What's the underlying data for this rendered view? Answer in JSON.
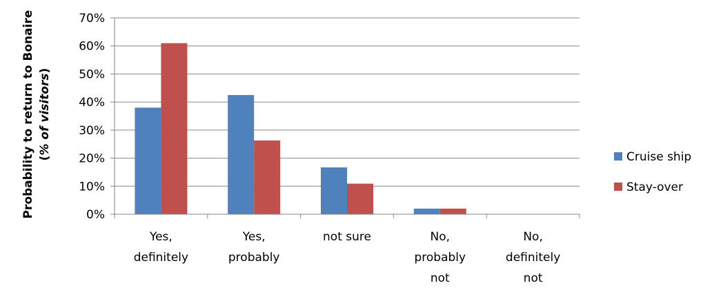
{
  "chart_data": {
    "type": "bar",
    "categories": [
      [
        "Yes,",
        "definitely"
      ],
      [
        "Yes,",
        "probably"
      ],
      [
        "not sure"
      ],
      [
        "No,",
        "probably",
        "not"
      ],
      [
        "No,",
        "definitely",
        "not"
      ]
    ],
    "series": [
      {
        "name": "Cruise ship",
        "color": "#4F81BD",
        "values": [
          38,
          42.5,
          16.7,
          2,
          0
        ]
      },
      {
        "name": "Stay-over",
        "color": "#C0504D",
        "values": [
          61,
          26.3,
          10.9,
          2,
          0
        ]
      }
    ],
    "ylabel": [
      "Probability to return to Bonaire",
      "(% of visitors)"
    ],
    "ylabel_plain": "Probability to return to Bonaire",
    "ylabel_paren_open": "(",
    "ylabel_italic": "% of visitors",
    "ylabel_paren_close": ")",
    "ylim": [
      0,
      70
    ],
    "yticks": [
      "0%",
      "10%",
      "20%",
      "30%",
      "40%",
      "50%",
      "60%",
      "70%"
    ],
    "grid": true,
    "legend_position": "right"
  }
}
